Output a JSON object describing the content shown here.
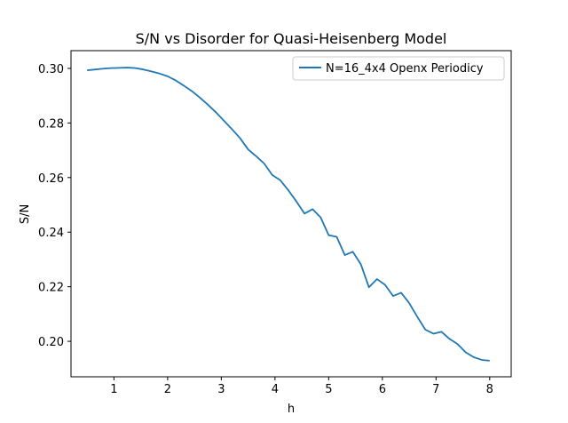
{
  "chart_data": {
    "type": "line",
    "title": "S/N vs Disorder for Quasi-Heisenberg Model",
    "xlabel": "h",
    "ylabel": "S/N",
    "xlim": [
      0.2,
      8.4
    ],
    "ylim": [
      0.187,
      0.3065
    ],
    "xticks": [
      1,
      2,
      3,
      4,
      5,
      6,
      7,
      8
    ],
    "yticks": [
      0.2,
      0.22,
      0.24,
      0.26,
      0.28,
      0.3
    ],
    "ytick_labels": [
      "0.20",
      "0.22",
      "0.24",
      "0.26",
      "0.28",
      "0.30"
    ],
    "grid": false,
    "legend_position": "upper right",
    "series": [
      {
        "name": "N=16_4x4 Openx Periodicy",
        "color": "#1f77b4",
        "x": [
          0.5,
          0.65,
          0.8,
          0.95,
          1.1,
          1.25,
          1.4,
          1.55,
          1.7,
          1.85,
          2.0,
          2.15,
          2.3,
          2.45,
          2.6,
          2.75,
          2.9,
          3.05,
          3.2,
          3.35,
          3.5,
          3.65,
          3.8,
          3.95,
          4.1,
          4.25,
          4.4,
          4.55,
          4.7,
          4.85,
          5.0,
          5.15,
          5.3,
          5.45,
          5.6,
          5.75,
          5.9,
          6.05,
          6.2,
          6.35,
          6.5,
          6.65,
          6.8,
          6.95,
          7.1,
          7.25,
          7.4,
          7.55,
          7.7,
          7.85,
          8.0
        ],
        "y": [
          0.2993,
          0.2996,
          0.2999,
          0.3001,
          0.3002,
          0.3003,
          0.3001,
          0.2996,
          0.2989,
          0.2981,
          0.2971,
          0.2956,
          0.2937,
          0.2917,
          0.2893,
          0.2867,
          0.2839,
          0.2808,
          0.2777,
          0.2744,
          0.2703,
          0.2678,
          0.2651,
          0.2609,
          0.259,
          0.2553,
          0.2512,
          0.2468,
          0.2484,
          0.2454,
          0.2389,
          0.2383,
          0.2316,
          0.2328,
          0.2282,
          0.2198,
          0.2228,
          0.2207,
          0.2166,
          0.2178,
          0.214,
          0.209,
          0.2043,
          0.2028,
          0.2035,
          0.2009,
          0.199,
          0.196,
          0.1942,
          0.1932,
          0.1929
        ]
      }
    ]
  }
}
